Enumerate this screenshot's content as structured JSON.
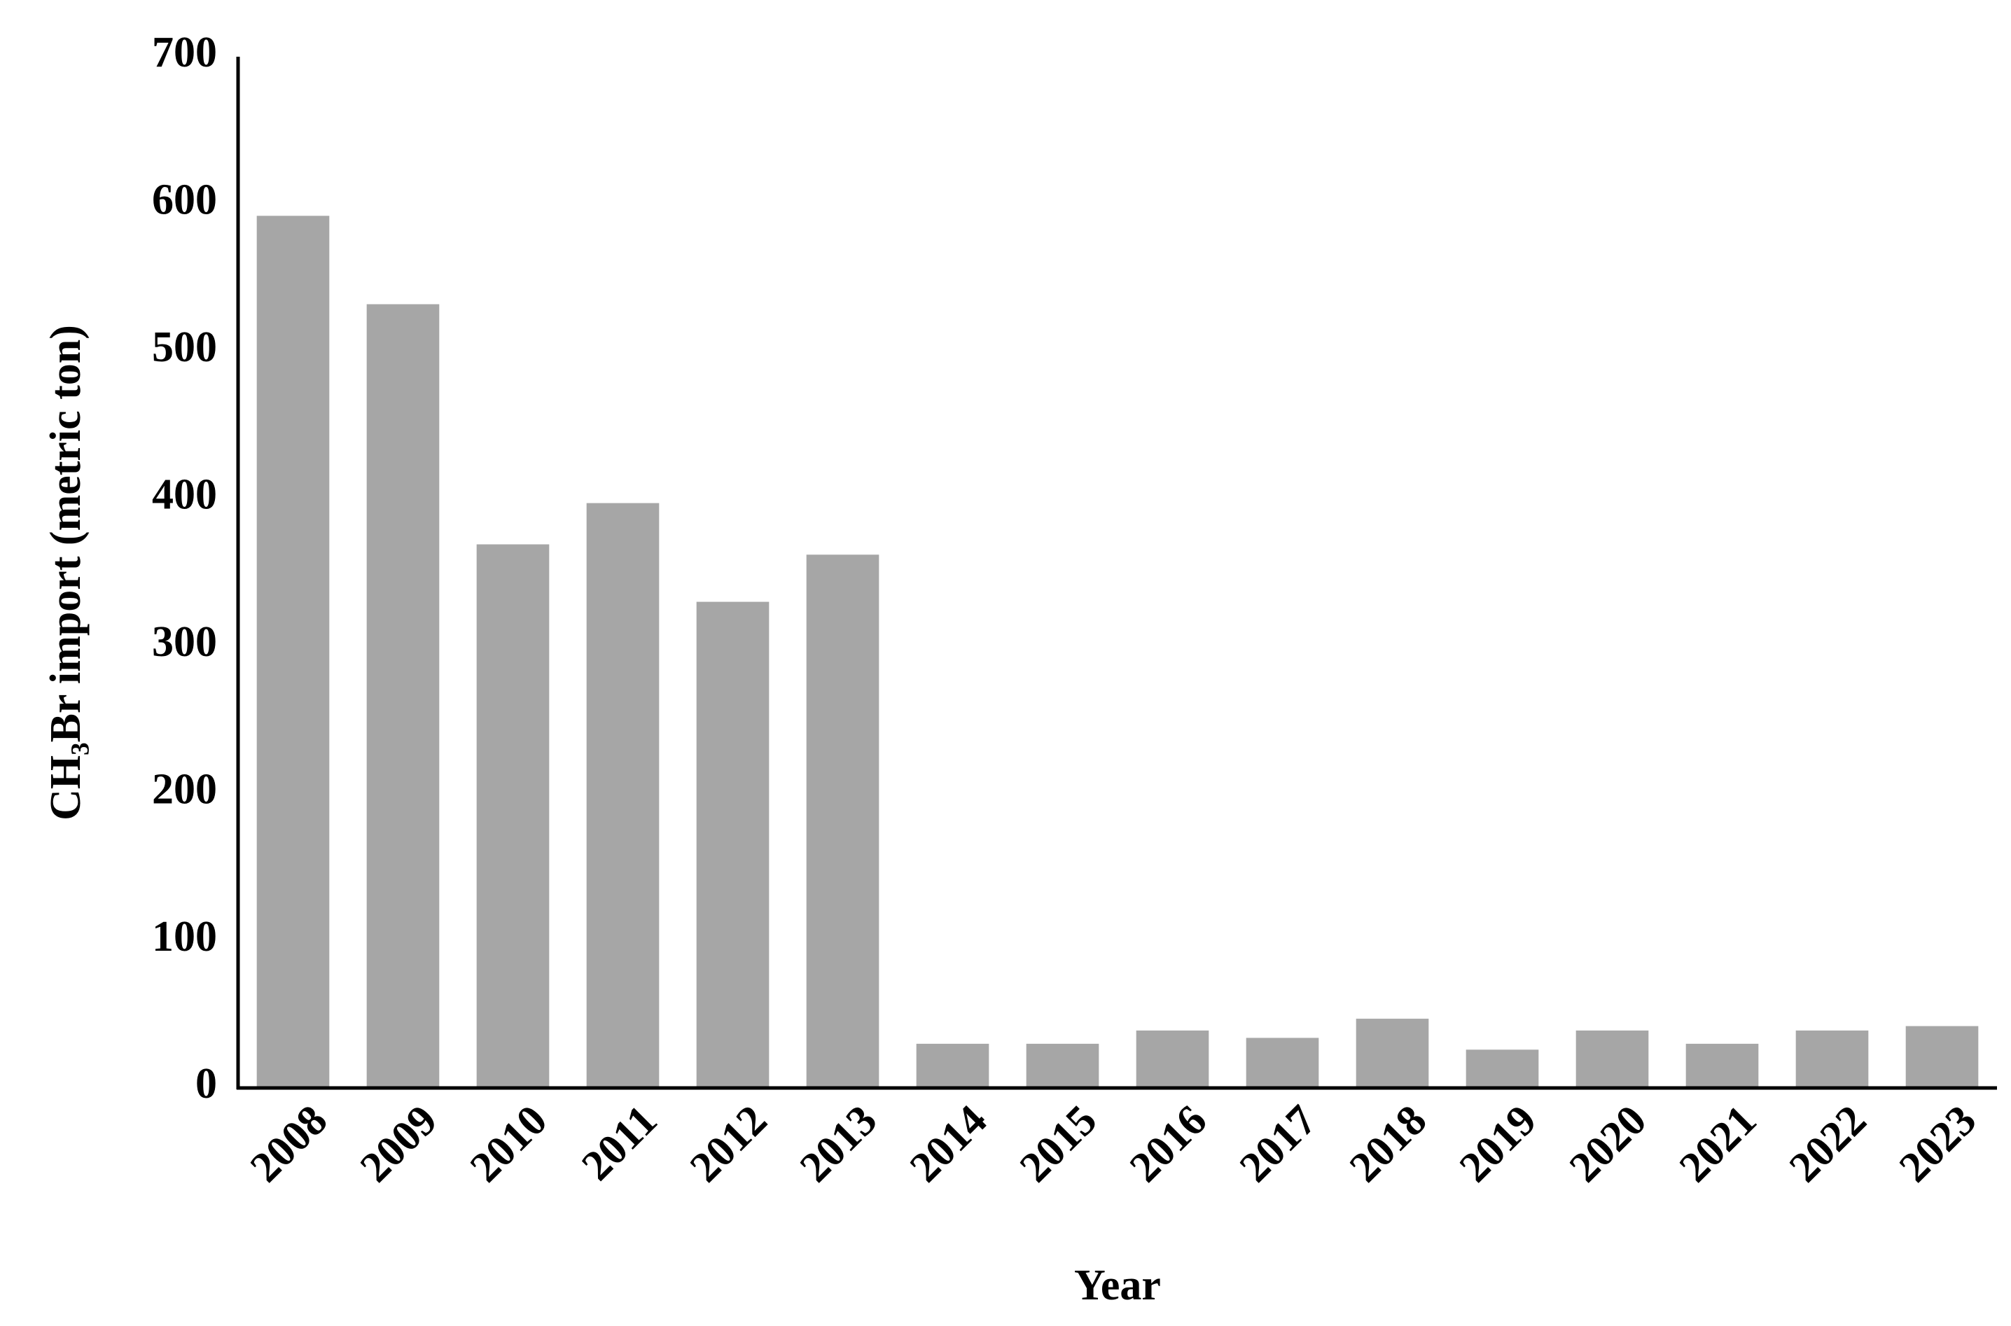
{
  "chart_data": {
    "type": "bar",
    "x_label": "Year",
    "y_label": "CH₃Br import (metric ton)",
    "categories": [
      "2008",
      "2009",
      "2010",
      "2011",
      "2012",
      "2013",
      "2014",
      "2015",
      "2016",
      "2017",
      "2018",
      "2019",
      "2020",
      "2021",
      "2022",
      "2023"
    ],
    "values": [
      592,
      532,
      369,
      397,
      330,
      362,
      30,
      30,
      39,
      34,
      47,
      26,
      39,
      30,
      39,
      42
    ],
    "color": "#a6a6a6",
    "ylim": [
      0,
      700
    ],
    "yticks": [
      0,
      100,
      200,
      300,
      400,
      500,
      600,
      700
    ],
    "grid": false
  }
}
